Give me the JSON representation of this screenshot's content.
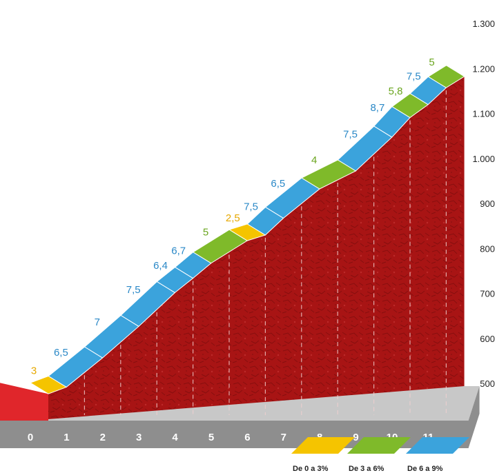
{
  "chart_data": {
    "type": "area",
    "x_label_unit": "km",
    "x_ticks": [
      "0",
      "1",
      "2",
      "3",
      "4",
      "5",
      "6",
      "7",
      "8",
      "9",
      "10",
      "11"
    ],
    "y_ticks": [
      "500",
      "600",
      "700",
      "800",
      "900",
      "1.000",
      "1.100",
      "1.200",
      "1.300"
    ],
    "ylim": [
      500,
      1300
    ],
    "segments": [
      {
        "x0": 0,
        "x1": 0.5,
        "grade": "3",
        "grade_value": 3.0,
        "band": "0-3"
      },
      {
        "x0": 0.5,
        "x1": 1.5,
        "grade": "6,5",
        "grade_value": 6.5,
        "band": "6-9"
      },
      {
        "x0": 1.5,
        "x1": 2.5,
        "grade": "7",
        "grade_value": 7.0,
        "band": "6-9"
      },
      {
        "x0": 2.5,
        "x1": 3.5,
        "grade": "7,5",
        "grade_value": 7.5,
        "band": "6-9"
      },
      {
        "x0": 3.5,
        "x1": 4.0,
        "grade": "6,4",
        "grade_value": 6.4,
        "band": "6-9"
      },
      {
        "x0": 4.0,
        "x1": 4.5,
        "grade": "6,7",
        "grade_value": 6.7,
        "band": "6-9"
      },
      {
        "x0": 4.5,
        "x1": 5.5,
        "grade": "5",
        "grade_value": 5.0,
        "band": "3-6"
      },
      {
        "x0": 5.5,
        "x1": 6.0,
        "grade": "2,5",
        "grade_value": 2.5,
        "band": "0-3"
      },
      {
        "x0": 6.0,
        "x1": 6.5,
        "grade": "7,5",
        "grade_value": 7.5,
        "band": "6-9"
      },
      {
        "x0": 6.5,
        "x1": 7.5,
        "grade": "6,5",
        "grade_value": 6.5,
        "band": "6-9"
      },
      {
        "x0": 7.5,
        "x1": 8.5,
        "grade": "4",
        "grade_value": 4.0,
        "band": "3-6"
      },
      {
        "x0": 8.5,
        "x1": 9.5,
        "grade": "7,5",
        "grade_value": 7.5,
        "band": "6-9"
      },
      {
        "x0": 9.5,
        "x1": 10.0,
        "grade": "8,7",
        "grade_value": 8.7,
        "band": "6-9"
      },
      {
        "x0": 10.0,
        "x1": 10.5,
        "grade": "5,8",
        "grade_value": 5.8,
        "band": "3-6"
      },
      {
        "x0": 10.5,
        "x1": 11.0,
        "grade": "7,5",
        "grade_value": 7.5,
        "band": "6-9"
      },
      {
        "x0": 11.0,
        "x1": 11.5,
        "grade": "5",
        "grade_value": 5.0,
        "band": "3-6"
      }
    ],
    "start_altitude": 515,
    "legend": [
      {
        "label": "De 0 a 3%",
        "band": "0-3",
        "color": "#f5c400"
      },
      {
        "label": "De 3 a 6%",
        "band": "3-6",
        "color": "#7fba2a"
      },
      {
        "label": "De 6 a 9%",
        "band": "6-9",
        "color": "#3ba3dc"
      }
    ],
    "colors": {
      "mountain": "#a81414",
      "mountain_dark": "#7a0c0c",
      "start_block": "#e0262b",
      "base_top": "#c8c8c8",
      "base_front": "#8e8e8e",
      "label_colors": {
        "0-3": "#e6a800",
        "3-6": "#6aa51e",
        "6-9": "#2a88c7"
      }
    }
  }
}
